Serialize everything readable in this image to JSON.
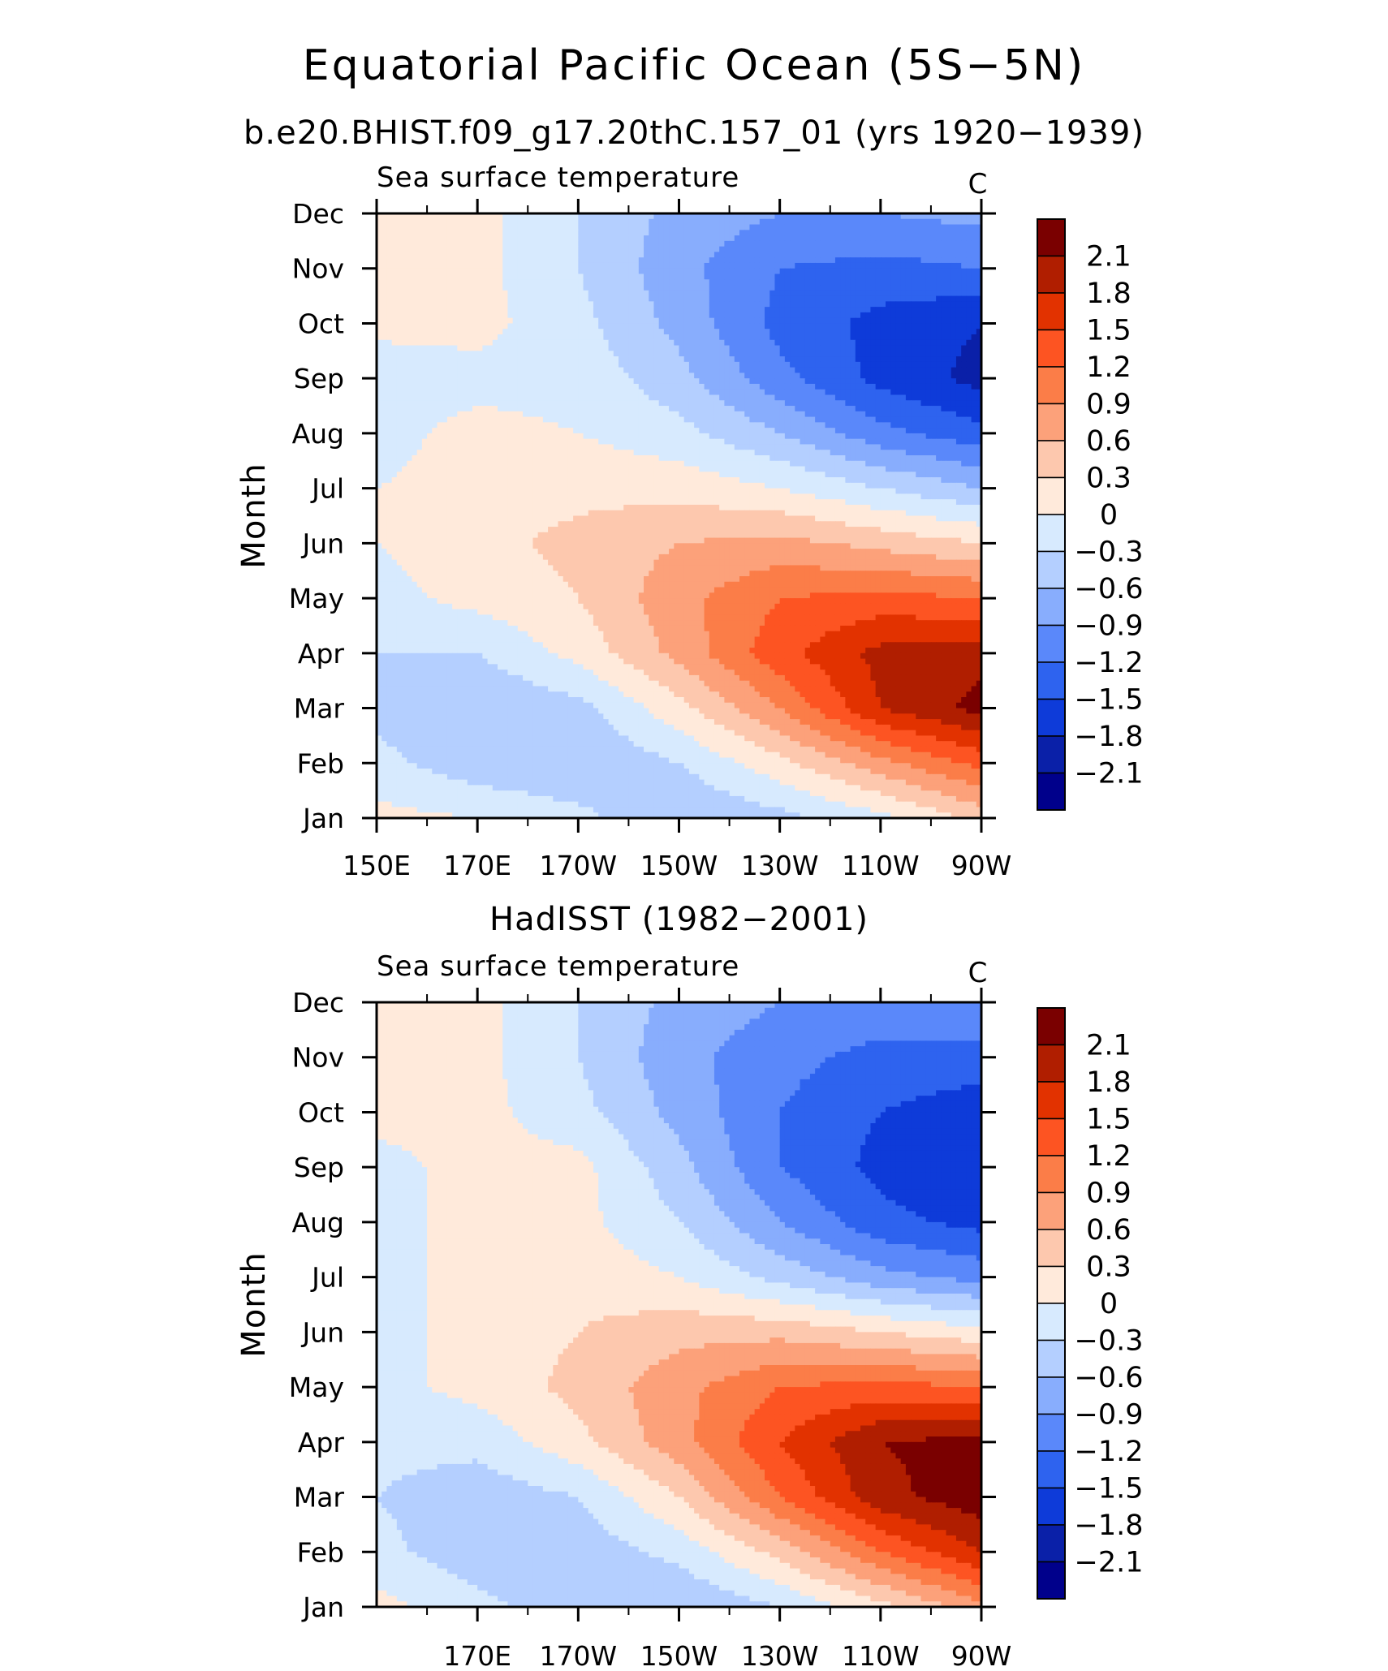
{
  "figure": {
    "title": "Equatorial Pacific Ocean (5S−5N)",
    "subtitle": "b.e20.BHIST.f09_g17.20thC.157_01 (yrs 1920−1939)"
  },
  "colorbar": {
    "levels": [
      "2.1",
      "1.8",
      "1.5",
      "1.2",
      "0.9",
      "0.6",
      "0.3",
      "0",
      "−0.3",
      "−0.6",
      "−0.9",
      "−1.2",
      "−1.5",
      "−1.8",
      "−2.1"
    ],
    "colors": [
      "#7a0000",
      "#b01e00",
      "#e23200",
      "#fd5422",
      "#fb7d48",
      "#fca17a",
      "#fdc8ae",
      "#ffeadb",
      "#d7eafe",
      "#b4cfff",
      "#88adfd",
      "#5a88fa",
      "#2e63ef",
      "#0e3bd9",
      "#0a20a8",
      "#00008b"
    ]
  },
  "chart_data": [
    {
      "type": "heatmap",
      "title": "b.e20.BHIST.f09_g17.20thC.157_01 (yrs 1920−1939)",
      "left_label": "Sea surface temperature",
      "units": "C",
      "ylabel": "Month",
      "xlabel": "",
      "x_ticks": [
        "150E",
        "170E",
        "170W",
        "150W",
        "130W",
        "110W",
        "90W"
      ],
      "x_range_deg_east": [
        150,
        270
      ],
      "y_ticks": [
        "Jan",
        "Feb",
        "Mar",
        "Apr",
        "May",
        "Jun",
        "Jul",
        "Aug",
        "Sep",
        "Oct",
        "Nov",
        "Dec"
      ],
      "x": [
        150,
        170,
        190,
        210,
        230,
        250,
        270
      ],
      "z": [
        [
          0.1,
          0.0,
          -0.2,
          -0.6,
          -0.4,
          -0.1,
          0.4
        ],
        [
          -0.2,
          -0.5,
          -0.6,
          -0.3,
          0.2,
          0.8,
          1.3
        ],
        [
          -0.4,
          -0.6,
          -0.4,
          0.2,
          0.9,
          1.8,
          2.2
        ],
        [
          -0.3,
          -0.3,
          0.1,
          0.7,
          1.4,
          1.9,
          2.0
        ],
        [
          -0.1,
          0.1,
          0.3,
          0.8,
          1.2,
          1.3,
          1.2
        ],
        [
          0.0,
          0.2,
          0.4,
          0.6,
          0.7,
          0.5,
          0.3
        ],
        [
          0.0,
          0.1,
          0.2,
          0.2,
          0.0,
          -0.3,
          -0.6
        ],
        [
          -0.1,
          0.1,
          0.0,
          -0.2,
          -0.6,
          -1.1,
          -1.4
        ],
        [
          -0.2,
          -0.1,
          -0.1,
          -0.5,
          -1.1,
          -1.6,
          -1.9
        ],
        [
          0.1,
          0.1,
          -0.2,
          -0.7,
          -1.3,
          -1.6,
          -1.8
        ],
        [
          0.1,
          0.1,
          -0.3,
          -0.8,
          -1.2,
          -1.3,
          -1.2
        ],
        [
          0.1,
          0.1,
          -0.3,
          -0.7,
          -0.9,
          -0.9,
          -0.8
        ]
      ],
      "zlevels": [
        -2.1,
        2.1
      ]
    },
    {
      "type": "heatmap",
      "title": "HadISST (1982−2001)",
      "left_label": "Sea surface temperature",
      "units": "C",
      "ylabel": "Month",
      "xlabel": "",
      "x_ticks": [
        "170E",
        "170W",
        "150W",
        "130W",
        "110W",
        "90W"
      ],
      "x_range_deg_east": [
        150,
        270
      ],
      "y_ticks": [
        "Jan",
        "Feb",
        "Mar",
        "Apr",
        "May",
        "Jun",
        "Jul",
        "Aug",
        "Sep",
        "Oct",
        "Nov",
        "Dec"
      ],
      "x": [
        150,
        170,
        190,
        210,
        230,
        250,
        270
      ],
      "z": [
        [
          0.1,
          -0.2,
          -0.5,
          -0.6,
          -0.3,
          0.2,
          0.8
        ],
        [
          -0.2,
          -0.5,
          -0.5,
          -0.2,
          0.4,
          1.2,
          1.8
        ],
        [
          -0.3,
          -0.5,
          -0.3,
          0.3,
          1.2,
          2.0,
          2.3
        ],
        [
          -0.2,
          -0.2,
          0.2,
          0.8,
          1.5,
          2.1,
          2.2
        ],
        [
          -0.1,
          0.1,
          0.4,
          0.8,
          1.2,
          1.3,
          1.2
        ],
        [
          -0.1,
          0.1,
          0.3,
          0.5,
          0.5,
          0.3,
          0.1
        ],
        [
          -0.1,
          0.1,
          0.2,
          0.0,
          -0.4,
          -0.8,
          -1.0
        ],
        [
          -0.1,
          0.1,
          0.1,
          -0.3,
          -0.9,
          -1.4,
          -1.6
        ],
        [
          -0.1,
          0.1,
          0.1,
          -0.5,
          -1.2,
          -1.6,
          -1.8
        ],
        [
          0.1,
          0.1,
          -0.2,
          -0.7,
          -1.2,
          -1.5,
          -1.7
        ],
        [
          0.1,
          0.1,
          -0.3,
          -0.8,
          -1.1,
          -1.3,
          -1.3
        ],
        [
          0.1,
          0.1,
          -0.3,
          -0.7,
          -0.9,
          -1.0,
          -1.0
        ]
      ],
      "zlevels": [
        -2.1,
        2.1
      ]
    }
  ]
}
